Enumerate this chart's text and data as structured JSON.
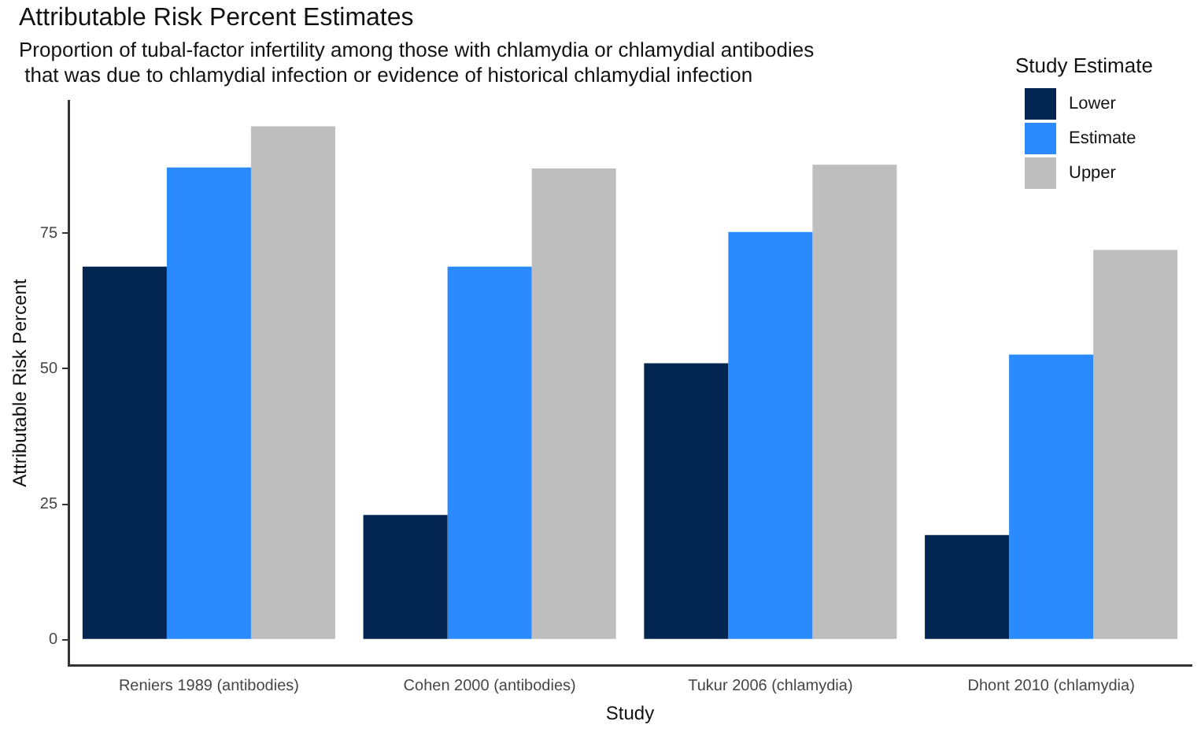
{
  "chart_data": {
    "type": "bar",
    "title": "Attributable Risk Percent Estimates",
    "subtitle": "Proportion of tubal-factor infertility among those with chlamydia or chlamydial antibodies\n that was due to chlamydial infection or evidence of historical chlamydial infection",
    "xlabel": "Study",
    "ylabel": "Attributable Risk Percent",
    "legend_title": "Study Estimate",
    "legend": "top right",
    "grid": false,
    "categories": [
      "Reniers 1989 (antibodies)",
      "Cohen 2000 (antibodies)",
      "Tukur 2006 (chlamydia)",
      "Dhont 2010 (chlamydia)"
    ],
    "series": [
      {
        "name": "Lower",
        "color": "#022651",
        "values": [
          68.8,
          23.0,
          51.0,
          19.3
        ]
      },
      {
        "name": "Estimate",
        "color": "#2b8bfe",
        "values": [
          87.1,
          68.8,
          75.2,
          52.6
        ]
      },
      {
        "name": "Upper",
        "color": "#bebebe",
        "values": [
          94.7,
          86.9,
          87.6,
          71.9
        ]
      }
    ],
    "ylim": [
      -4.7,
      99.4
    ],
    "yticks": [
      0,
      25,
      50,
      75
    ]
  }
}
